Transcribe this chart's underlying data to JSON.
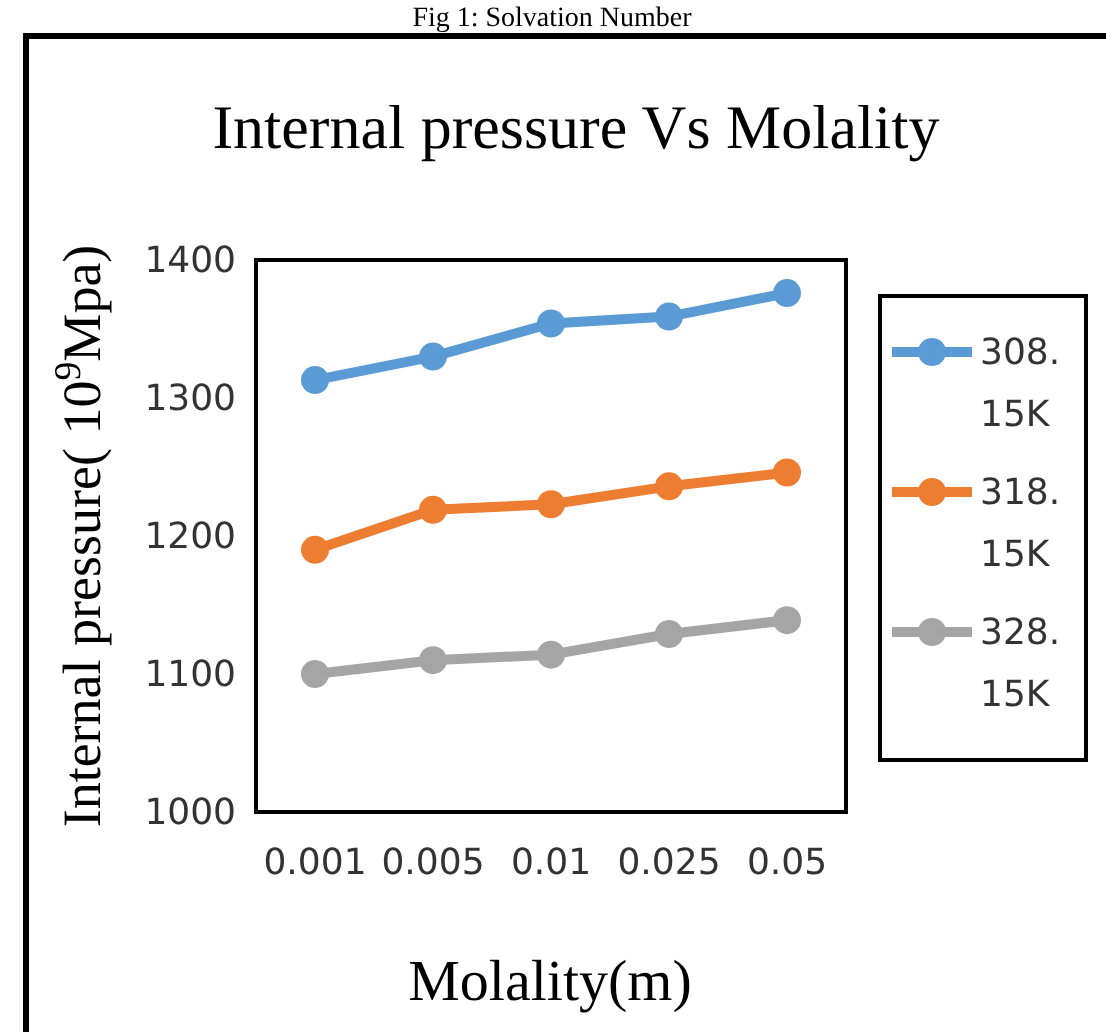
{
  "chart_data": {
    "type": "line",
    "title": "Internal pressure Vs Molality",
    "xlabel": "Molality(m)",
    "ylabel": "Internal pressure( 10$^{9}$Mpa)",
    "annotations": [
      "Fig 1: Solvation Number"
    ],
    "categories": [
      "0.001",
      "0.005",
      "0.01",
      "0.025",
      "0.05"
    ],
    "series": [
      {
        "name": "308.15K",
        "color": "#5b9bd5",
        "values": [
          1313,
          1330,
          1354,
          1359,
          1376
        ]
      },
      {
        "name": "318.15K",
        "color": "#ed7d31",
        "values": [
          1190,
          1219,
          1223,
          1236,
          1246
        ]
      },
      {
        "name": "328.15K",
        "color": "#a5a5a5",
        "values": [
          1100,
          1110,
          1114,
          1129,
          1139
        ]
      }
    ],
    "ylim": [
      1000,
      1400
    ],
    "yticks": [
      1000,
      1100,
      1200,
      1300,
      1400
    ],
    "grid": false,
    "legend": "right",
    "marker": "circle",
    "line_style": "solid"
  }
}
